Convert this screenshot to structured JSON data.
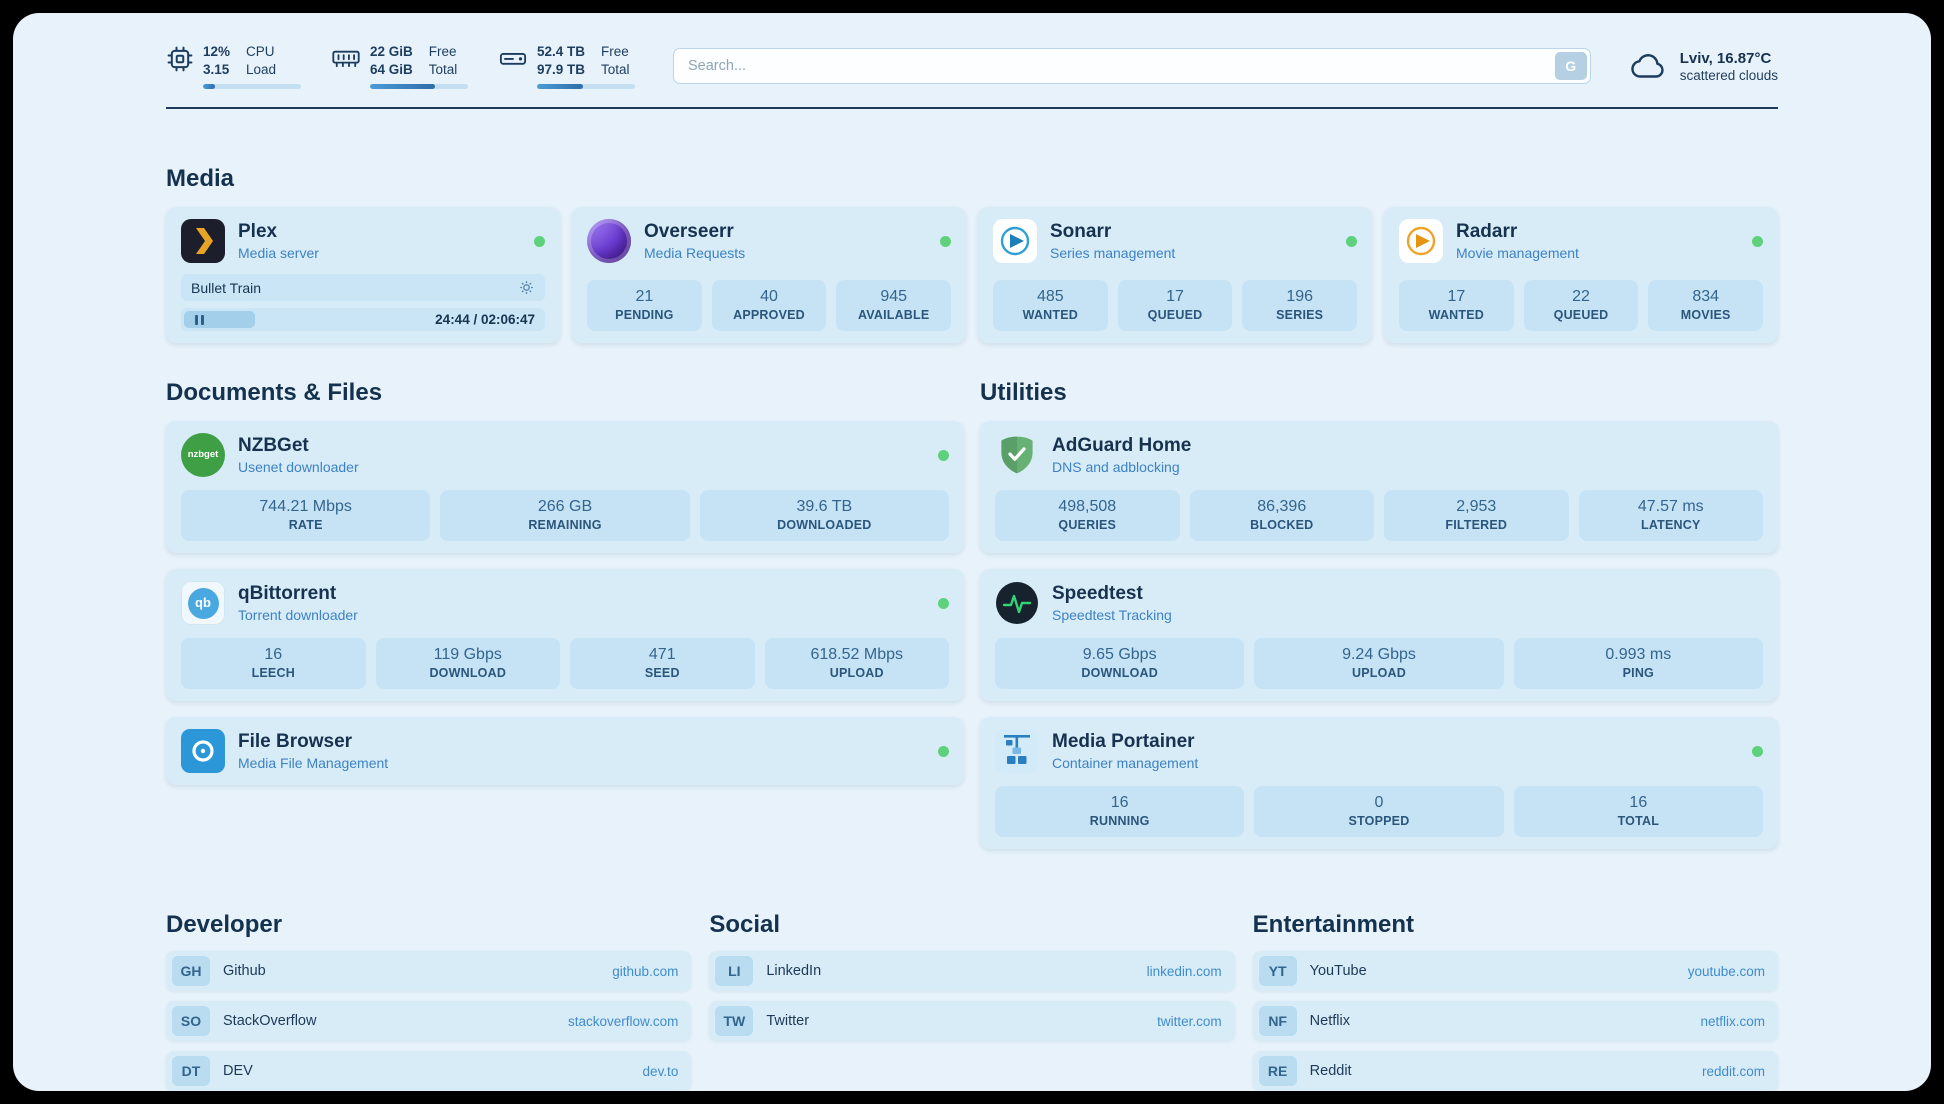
{
  "colors": {
    "accent_blue": "#3c80c0",
    "status_green": "#5ed17c",
    "plex_gold": "#e8a426",
    "overseerr_purple": "#6d3fd4",
    "sonarr_blue": "#1f7fb8",
    "radarr_gold": "#e49512",
    "nzbget_green": "#3f9f45",
    "qbittorrent_blue": "#4aa8e0",
    "adguard_green": "#67b175",
    "speedtest_pulse_green": "#34d274",
    "filebrowser_blue": "#2b96d8",
    "portainer_blue": "#2a7fc0"
  },
  "topbar": {
    "cpu": {
      "value_top": "12%",
      "value_bottom": "3.15",
      "label_top": "CPU",
      "label_bottom": "Load",
      "progress": 12
    },
    "ram": {
      "value_top": "22 GiB",
      "value_bottom": "64 GiB",
      "label_top": "Free",
      "label_bottom": "Total",
      "progress": 66
    },
    "disk": {
      "value_top": "52.4 TB",
      "value_bottom": "97.9 TB",
      "label_top": "Free",
      "label_bottom": "Total",
      "progress": 47
    },
    "search": {
      "placeholder": "Search...",
      "button_label": "G"
    },
    "weather": {
      "location": "Lviv, 16.87°C",
      "condition": "scattered clouds"
    }
  },
  "media": {
    "heading": "Media",
    "plex": {
      "name": "Plex",
      "subtitle": "Media server",
      "now_playing": "Bullet Train",
      "time": "24:44 / 02:06:47",
      "progress": 19.5
    },
    "overseerr": {
      "name": "Overseerr",
      "subtitle": "Media Requests",
      "stats": [
        {
          "value": "21",
          "label": "PENDING"
        },
        {
          "value": "40",
          "label": "APPROVED"
        },
        {
          "value": "945",
          "label": "AVAILABLE"
        }
      ]
    },
    "sonarr": {
      "name": "Sonarr",
      "subtitle": "Series management",
      "stats": [
        {
          "value": "485",
          "label": "WANTED"
        },
        {
          "value": "17",
          "label": "QUEUED"
        },
        {
          "value": "196",
          "label": "SERIES"
        }
      ]
    },
    "radarr": {
      "name": "Radarr",
      "subtitle": "Movie management",
      "stats": [
        {
          "value": "17",
          "label": "WANTED"
        },
        {
          "value": "22",
          "label": "QUEUED"
        },
        {
          "value": "834",
          "label": "MOVIES"
        }
      ]
    }
  },
  "documents": {
    "heading": "Documents & Files",
    "nzbget": {
      "name": "NZBGet",
      "subtitle": "Usenet downloader",
      "icon_text": "nzbget",
      "stats": [
        {
          "value": "744.21 Mbps",
          "label": "RATE"
        },
        {
          "value": "266 GB",
          "label": "REMAINING"
        },
        {
          "value": "39.6 TB",
          "label": "DOWNLOADED"
        }
      ]
    },
    "qbittorrent": {
      "name": "qBittorrent",
      "subtitle": "Torrent downloader",
      "icon_text": "qb",
      "stats": [
        {
          "value": "16",
          "label": "LEECH"
        },
        {
          "value": "119 Gbps",
          "label": "DOWNLOAD"
        },
        {
          "value": "471",
          "label": "SEED"
        },
        {
          "value": "618.52 Mbps",
          "label": "UPLOAD"
        }
      ]
    },
    "filebrowser": {
      "name": "File Browser",
      "subtitle": "Media File Management"
    }
  },
  "utilities": {
    "heading": "Utilities",
    "adguard": {
      "name": "AdGuard Home",
      "subtitle": "DNS and adblocking",
      "stats": [
        {
          "value": "498,508",
          "label": "QUERIES"
        },
        {
          "value": "86,396",
          "label": "BLOCKED"
        },
        {
          "value": "2,953",
          "label": "FILTERED"
        },
        {
          "value": "47.57 ms",
          "label": "LATENCY"
        }
      ]
    },
    "speedtest": {
      "name": "Speedtest",
      "subtitle": "Speedtest Tracking",
      "stats": [
        {
          "value": "9.65 Gbps",
          "label": "DOWNLOAD"
        },
        {
          "value": "9.24 Gbps",
          "label": "UPLOAD"
        },
        {
          "value": "0.993 ms",
          "label": "PING"
        }
      ]
    },
    "portainer": {
      "name": "Media Portainer",
      "subtitle": "Container management",
      "stats": [
        {
          "value": "16",
          "label": "RUNNING"
        },
        {
          "value": "0",
          "label": "STOPPED"
        },
        {
          "value": "16",
          "label": "TOTAL"
        }
      ]
    }
  },
  "links": {
    "developer": {
      "heading": "Developer",
      "items": [
        {
          "abbr": "GH",
          "name": "Github",
          "url": "github.com"
        },
        {
          "abbr": "SO",
          "name": "StackOverflow",
          "url": "stackoverflow.com"
        },
        {
          "abbr": "DT",
          "name": "DEV",
          "url": "dev.to"
        }
      ]
    },
    "social": {
      "heading": "Social",
      "items": [
        {
          "abbr": "LI",
          "name": "LinkedIn",
          "url": "linkedin.com"
        },
        {
          "abbr": "TW",
          "name": "Twitter",
          "url": "twitter.com"
        }
      ]
    },
    "entertainment": {
      "heading": "Entertainment",
      "items": [
        {
          "abbr": "YT",
          "name": "YouTube",
          "url": "youtube.com"
        },
        {
          "abbr": "NF",
          "name": "Netflix",
          "url": "netflix.com"
        },
        {
          "abbr": "RE",
          "name": "Reddit",
          "url": "reddit.com"
        }
      ]
    }
  }
}
